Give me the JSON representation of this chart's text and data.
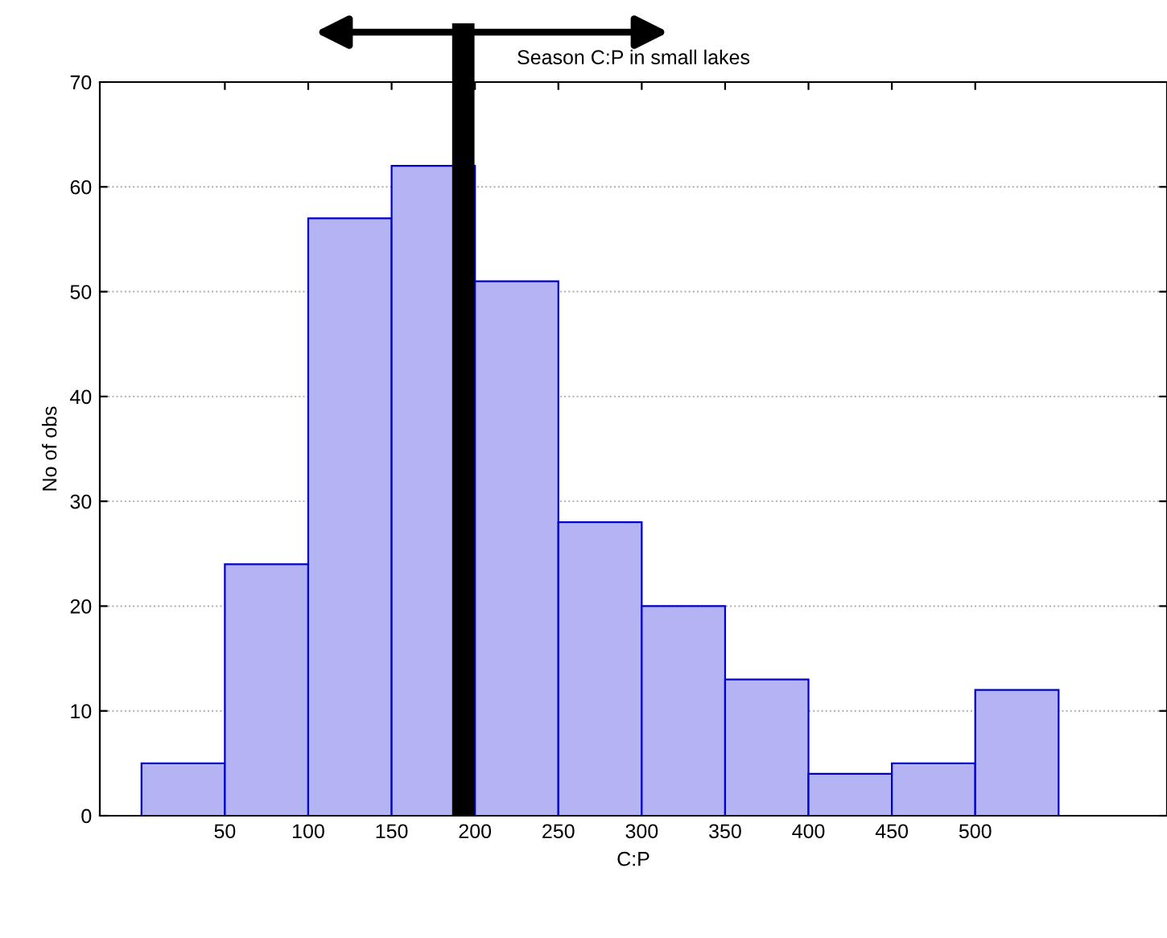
{
  "chart_data": {
    "type": "histogram",
    "title": "Season C:P in small lakes",
    "xlabel": "C:P",
    "ylabel": "No of obs",
    "bins": [
      0,
      50,
      100,
      150,
      200,
      250,
      300,
      350,
      400,
      450,
      500,
      550
    ],
    "values": [
      5,
      24,
      57,
      62,
      51,
      28,
      20,
      13,
      4,
      5,
      12
    ],
    "color": "#b4b4f4",
    "xlim": [
      -25,
      615
    ],
    "xticks": [
      50,
      100,
      150,
      200,
      250,
      300,
      350,
      400,
      450,
      500
    ],
    "ylim": [
      0,
      70
    ],
    "yticks": [
      0,
      10,
      20,
      30,
      40,
      50,
      60,
      70
    ],
    "grid": "y",
    "ref_lines": [
      {
        "axis": "x",
        "value": 193,
        "color": "#000000"
      }
    ]
  }
}
